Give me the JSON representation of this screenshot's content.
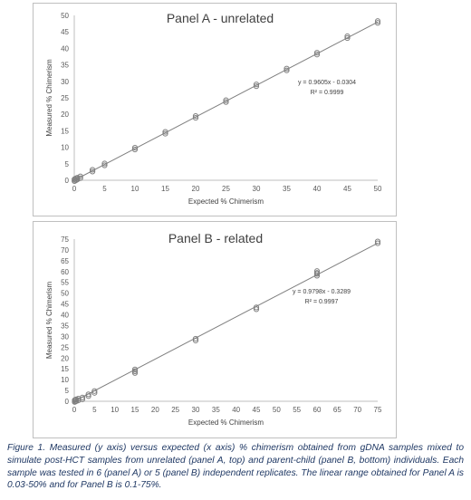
{
  "chart_data": [
    {
      "type": "scatter",
      "title": "Panel A - unrelated",
      "xlabel": "Expected % Chimerism",
      "ylabel": "Measured % Chimerism",
      "xlim": [
        0,
        50
      ],
      "ylim": [
        0,
        50
      ],
      "xticks": [
        0,
        5,
        10,
        15,
        20,
        25,
        30,
        35,
        40,
        45,
        50
      ],
      "yticks": [
        0,
        5,
        10,
        15,
        20,
        25,
        30,
        35,
        40,
        45,
        50
      ],
      "grid": false,
      "trendline": {
        "slope": 0.9605,
        "intercept": -0.0304,
        "equation": "y = 0.9605x - 0.0304",
        "r2": "R² = 0.9999"
      },
      "x": [
        0.03,
        0.1,
        0.3,
        0.5,
        1,
        3,
        5,
        10,
        15,
        20,
        25,
        30,
        35,
        40,
        45,
        50
      ],
      "y": [
        0.03,
        0.1,
        0.3,
        0.5,
        0.9,
        2.9,
        4.8,
        9.6,
        14.4,
        19.2,
        24.0,
        28.8,
        33.6,
        38.4,
        43.4,
        48.0
      ],
      "colors": {
        "marker": "#808080",
        "line": "#7f7f7f",
        "axis": "#bfbfbf"
      }
    },
    {
      "type": "scatter",
      "title": "Panel B - related",
      "xlabel": "Expected % Chimerism",
      "ylabel": "Measured % Chimerism",
      "xlim": [
        0,
        75
      ],
      "ylim": [
        0,
        75
      ],
      "xticks": [
        0,
        5,
        10,
        15,
        20,
        25,
        30,
        35,
        40,
        45,
        50,
        55,
        60,
        65,
        70,
        75
      ],
      "yticks": [
        0,
        5,
        10,
        15,
        20,
        25,
        30,
        35,
        40,
        45,
        50,
        55,
        60,
        65,
        70,
        75
      ],
      "grid": false,
      "trendline": {
        "slope": 0.9798,
        "intercept": -0.3289,
        "equation": "y = 0.9798x - 0.3289",
        "r2": "R² = 0.9997"
      },
      "x": [
        0.1,
        0.3,
        0.5,
        1,
        2,
        3.5,
        5,
        15,
        15,
        30,
        45,
        60,
        60,
        75
      ],
      "y": [
        0.1,
        0.3,
        0.5,
        0.8,
        1.3,
        2.8,
        4.3,
        13.5,
        14.3,
        28.5,
        43.0,
        58.5,
        59.8,
        73.5
      ],
      "colors": {
        "marker": "#808080",
        "line": "#7f7f7f",
        "axis": "#bfbfbf"
      }
    }
  ],
  "caption": "Figure 1. Measured (y axis) versus expected (x axis) % chimerism obtained from gDNA samples mixed to simulate post-HCT samples from unrelated (panel A, top) and parent-child (panel B, bottom) individuals. Each sample was tested in 6 (panel A) or 5 (panel B) independent replicates. The linear range obtained for Panel A is 0.03-50% and for Panel B is 0.1-75%."
}
